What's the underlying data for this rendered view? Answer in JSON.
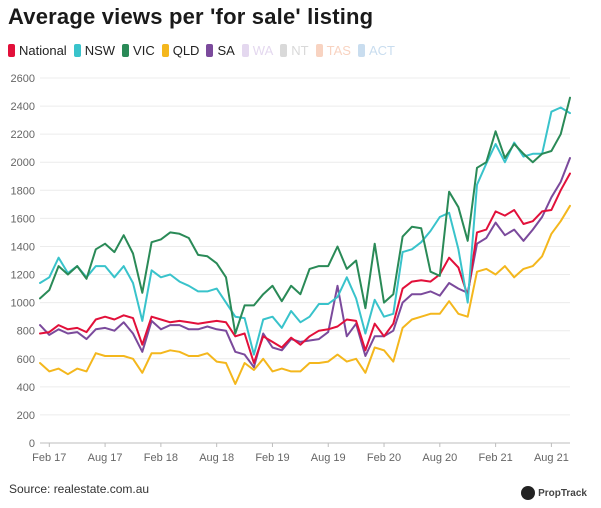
{
  "chart_data": {
    "type": "line",
    "title": "Average views per 'for sale' listing",
    "source": "Source: realestate.com.au",
    "brand": "PropTrack",
    "xlabel": "",
    "ylabel": "",
    "ylim": [
      0,
      2600
    ],
    "yticks": [
      0,
      200,
      400,
      600,
      800,
      1000,
      1200,
      1400,
      1600,
      1800,
      2000,
      2200,
      2400,
      2600
    ],
    "xlim": [
      0,
      57
    ],
    "xticks": [
      {
        "label": "Feb 17",
        "x": 1
      },
      {
        "label": "Aug 17",
        "x": 7
      },
      {
        "label": "Feb 18",
        "x": 13
      },
      {
        "label": "Aug 18",
        "x": 19
      },
      {
        "label": "Feb 19",
        "x": 25
      },
      {
        "label": "Aug 19",
        "x": 31
      },
      {
        "label": "Feb 20",
        "x": 37
      },
      {
        "label": "Aug 20",
        "x": 43
      },
      {
        "label": "Feb 21",
        "x": 49
      },
      {
        "label": "Aug 21",
        "x": 55
      }
    ],
    "grid": "horizontal",
    "legend": "top-left",
    "series": [
      {
        "name": "National",
        "color": "#e2103a",
        "visible": true,
        "points": [
          [
            0,
            780
          ],
          [
            1,
            790
          ],
          [
            2,
            840
          ],
          [
            3,
            810
          ],
          [
            4,
            820
          ],
          [
            5,
            790
          ],
          [
            6,
            880
          ],
          [
            7,
            900
          ],
          [
            8,
            880
          ],
          [
            9,
            910
          ],
          [
            10,
            890
          ],
          [
            11,
            700
          ],
          [
            12,
            900
          ],
          [
            13,
            880
          ],
          [
            14,
            860
          ],
          [
            15,
            870
          ],
          [
            16,
            860
          ],
          [
            17,
            850
          ],
          [
            18,
            860
          ],
          [
            19,
            870
          ],
          [
            20,
            860
          ],
          [
            21,
            760
          ],
          [
            22,
            780
          ],
          [
            23,
            570
          ],
          [
            24,
            760
          ],
          [
            25,
            720
          ],
          [
            26,
            680
          ],
          [
            27,
            750
          ],
          [
            28,
            700
          ],
          [
            29,
            760
          ],
          [
            30,
            800
          ],
          [
            31,
            810
          ],
          [
            32,
            830
          ],
          [
            33,
            880
          ],
          [
            34,
            870
          ],
          [
            35,
            660
          ],
          [
            36,
            850
          ],
          [
            37,
            760
          ],
          [
            38,
            850
          ],
          [
            39,
            1100
          ],
          [
            40,
            1150
          ],
          [
            41,
            1160
          ],
          [
            42,
            1150
          ],
          [
            43,
            1200
          ],
          [
            44,
            1320
          ],
          [
            45,
            1250
          ],
          [
            46,
            1050
          ],
          [
            47,
            1500
          ],
          [
            48,
            1520
          ],
          [
            49,
            1650
          ],
          [
            50,
            1620
          ],
          [
            51,
            1660
          ],
          [
            52,
            1560
          ],
          [
            53,
            1580
          ],
          [
            54,
            1650
          ],
          [
            55,
            1660
          ],
          [
            56,
            1800
          ],
          [
            57,
            1920
          ]
        ]
      },
      {
        "name": "NSW",
        "color": "#39c3cb",
        "visible": true,
        "points": [
          [
            0,
            1140
          ],
          [
            1,
            1180
          ],
          [
            2,
            1320
          ],
          [
            3,
            1210
          ],
          [
            4,
            1260
          ],
          [
            5,
            1180
          ],
          [
            6,
            1260
          ],
          [
            7,
            1260
          ],
          [
            8,
            1180
          ],
          [
            9,
            1260
          ],
          [
            10,
            1140
          ],
          [
            11,
            870
          ],
          [
            12,
            1230
          ],
          [
            13,
            1180
          ],
          [
            14,
            1200
          ],
          [
            15,
            1150
          ],
          [
            16,
            1120
          ],
          [
            17,
            1080
          ],
          [
            18,
            1080
          ],
          [
            19,
            1100
          ],
          [
            20,
            1000
          ],
          [
            21,
            900
          ],
          [
            22,
            890
          ],
          [
            23,
            630
          ],
          [
            24,
            880
          ],
          [
            25,
            900
          ],
          [
            26,
            820
          ],
          [
            27,
            940
          ],
          [
            28,
            860
          ],
          [
            29,
            900
          ],
          [
            30,
            990
          ],
          [
            31,
            990
          ],
          [
            32,
            1040
          ],
          [
            33,
            1180
          ],
          [
            34,
            1030
          ],
          [
            35,
            780
          ],
          [
            36,
            1020
          ],
          [
            37,
            900
          ],
          [
            38,
            920
          ],
          [
            39,
            1360
          ],
          [
            40,
            1380
          ],
          [
            41,
            1430
          ],
          [
            42,
            1510
          ],
          [
            43,
            1610
          ],
          [
            44,
            1640
          ],
          [
            45,
            1380
          ],
          [
            46,
            1000
          ],
          [
            47,
            1840
          ],
          [
            48,
            1990
          ],
          [
            49,
            2130
          ],
          [
            50,
            2000
          ],
          [
            51,
            2140
          ],
          [
            52,
            2040
          ],
          [
            53,
            2060
          ],
          [
            54,
            2060
          ],
          [
            55,
            2360
          ],
          [
            56,
            2390
          ],
          [
            57,
            2350
          ]
        ]
      },
      {
        "name": "VIC",
        "color": "#2a8a57",
        "visible": true,
        "points": [
          [
            0,
            1030
          ],
          [
            1,
            1090
          ],
          [
            2,
            1260
          ],
          [
            3,
            1200
          ],
          [
            4,
            1260
          ],
          [
            5,
            1170
          ],
          [
            6,
            1380
          ],
          [
            7,
            1420
          ],
          [
            8,
            1360
          ],
          [
            9,
            1480
          ],
          [
            10,
            1350
          ],
          [
            11,
            1070
          ],
          [
            12,
            1430
          ],
          [
            13,
            1450
          ],
          [
            14,
            1500
          ],
          [
            15,
            1490
          ],
          [
            16,
            1460
          ],
          [
            17,
            1340
          ],
          [
            18,
            1330
          ],
          [
            19,
            1280
          ],
          [
            20,
            1180
          ],
          [
            21,
            780
          ],
          [
            22,
            980
          ],
          [
            23,
            980
          ],
          [
            24,
            1060
          ],
          [
            25,
            1120
          ],
          [
            26,
            1010
          ],
          [
            27,
            1120
          ],
          [
            28,
            1060
          ],
          [
            29,
            1240
          ],
          [
            30,
            1260
          ],
          [
            31,
            1260
          ],
          [
            32,
            1400
          ],
          [
            33,
            1240
          ],
          [
            34,
            1300
          ],
          [
            35,
            960
          ],
          [
            36,
            1420
          ],
          [
            37,
            1000
          ],
          [
            38,
            1060
          ],
          [
            39,
            1470
          ],
          [
            40,
            1540
          ],
          [
            41,
            1530
          ],
          [
            42,
            1220
          ],
          [
            43,
            1190
          ],
          [
            44,
            1790
          ],
          [
            45,
            1680
          ],
          [
            46,
            1440
          ],
          [
            47,
            1960
          ],
          [
            48,
            2000
          ],
          [
            49,
            2220
          ],
          [
            50,
            2030
          ],
          [
            51,
            2130
          ],
          [
            52,
            2060
          ],
          [
            53,
            2000
          ],
          [
            54,
            2060
          ],
          [
            55,
            2080
          ],
          [
            56,
            2200
          ],
          [
            57,
            2460
          ]
        ]
      },
      {
        "name": "QLD",
        "color": "#f4b71d",
        "visible": true,
        "points": [
          [
            0,
            570
          ],
          [
            1,
            510
          ],
          [
            2,
            530
          ],
          [
            3,
            490
          ],
          [
            4,
            530
          ],
          [
            5,
            510
          ],
          [
            6,
            640
          ],
          [
            7,
            620
          ],
          [
            8,
            620
          ],
          [
            9,
            620
          ],
          [
            10,
            600
          ],
          [
            11,
            500
          ],
          [
            12,
            640
          ],
          [
            13,
            640
          ],
          [
            14,
            660
          ],
          [
            15,
            650
          ],
          [
            16,
            620
          ],
          [
            17,
            620
          ],
          [
            18,
            640
          ],
          [
            19,
            580
          ],
          [
            20,
            570
          ],
          [
            21,
            420
          ],
          [
            22,
            570
          ],
          [
            23,
            520
          ],
          [
            24,
            600
          ],
          [
            25,
            510
          ],
          [
            26,
            530
          ],
          [
            27,
            510
          ],
          [
            28,
            510
          ],
          [
            29,
            570
          ],
          [
            30,
            570
          ],
          [
            31,
            580
          ],
          [
            32,
            630
          ],
          [
            33,
            580
          ],
          [
            34,
            600
          ],
          [
            35,
            500
          ],
          [
            36,
            680
          ],
          [
            37,
            660
          ],
          [
            38,
            580
          ],
          [
            39,
            820
          ],
          [
            40,
            880
          ],
          [
            41,
            900
          ],
          [
            42,
            920
          ],
          [
            43,
            920
          ],
          [
            44,
            1010
          ],
          [
            45,
            920
          ],
          [
            46,
            900
          ],
          [
            47,
            1220
          ],
          [
            48,
            1240
          ],
          [
            49,
            1200
          ],
          [
            50,
            1260
          ],
          [
            51,
            1180
          ],
          [
            52,
            1240
          ],
          [
            53,
            1260
          ],
          [
            54,
            1330
          ],
          [
            55,
            1490
          ],
          [
            56,
            1580
          ],
          [
            57,
            1690
          ]
        ]
      },
      {
        "name": "SA",
        "color": "#7b4a9c",
        "visible": true,
        "points": [
          [
            0,
            840
          ],
          [
            1,
            770
          ],
          [
            2,
            810
          ],
          [
            3,
            780
          ],
          [
            4,
            790
          ],
          [
            5,
            740
          ],
          [
            6,
            810
          ],
          [
            7,
            820
          ],
          [
            8,
            800
          ],
          [
            9,
            860
          ],
          [
            10,
            780
          ],
          [
            11,
            650
          ],
          [
            12,
            870
          ],
          [
            13,
            810
          ],
          [
            14,
            840
          ],
          [
            15,
            840
          ],
          [
            16,
            810
          ],
          [
            17,
            810
          ],
          [
            18,
            830
          ],
          [
            19,
            810
          ],
          [
            20,
            800
          ],
          [
            21,
            650
          ],
          [
            22,
            630
          ],
          [
            23,
            540
          ],
          [
            24,
            780
          ],
          [
            25,
            680
          ],
          [
            26,
            660
          ],
          [
            27,
            740
          ],
          [
            28,
            720
          ],
          [
            29,
            730
          ],
          [
            30,
            740
          ],
          [
            31,
            790
          ],
          [
            32,
            1120
          ],
          [
            33,
            760
          ],
          [
            34,
            850
          ],
          [
            35,
            620
          ],
          [
            36,
            760
          ],
          [
            37,
            760
          ],
          [
            38,
            800
          ],
          [
            39,
            1000
          ],
          [
            40,
            1060
          ],
          [
            41,
            1060
          ],
          [
            42,
            1080
          ],
          [
            43,
            1050
          ],
          [
            44,
            1140
          ],
          [
            45,
            1100
          ],
          [
            46,
            1070
          ],
          [
            47,
            1420
          ],
          [
            48,
            1460
          ],
          [
            49,
            1570
          ],
          [
            50,
            1480
          ],
          [
            51,
            1520
          ],
          [
            52,
            1440
          ],
          [
            53,
            1520
          ],
          [
            54,
            1610
          ],
          [
            55,
            1750
          ],
          [
            56,
            1860
          ],
          [
            57,
            2030
          ]
        ]
      },
      {
        "name": "WA",
        "color": "#e4d8ef",
        "visible": false
      },
      {
        "name": "NT",
        "color": "#d9d9d9",
        "visible": false
      },
      {
        "name": "TAS",
        "color": "#f8d3c1",
        "visible": false
      },
      {
        "name": "ACT",
        "color": "#c9ddef",
        "visible": false
      }
    ]
  }
}
